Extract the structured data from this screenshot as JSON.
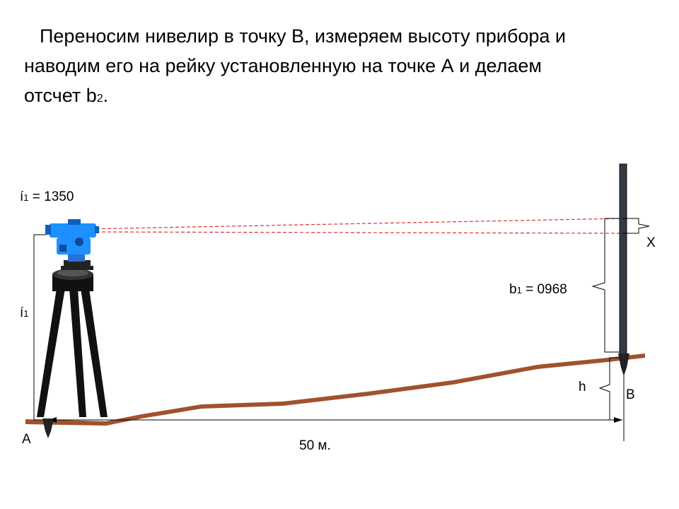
{
  "heading": {
    "line1": "Переносим нивелир в точку В, измеряем высоту прибора и",
    "line2": "наводим его на рейку установленную на точке А и делаем",
    "line3_main": "отсчет  b",
    "line3_sub": "2",
    "line3_end": "."
  },
  "labels": {
    "i1_value": {
      "main": "í",
      "sub": "1",
      "rest": " = 1350"
    },
    "i1": {
      "main": "í",
      "sub": "1"
    },
    "b1": {
      "main": "b",
      "sub": "1",
      "rest": " = 0968"
    },
    "x": "X",
    "h": "h",
    "point_a": "А",
    "point_b": "В",
    "distance": "50 м."
  },
  "colors": {
    "ground": "#a0522d",
    "sight_line": "#e03030",
    "instrument": "#1e90ff",
    "rod": "#333a44",
    "tripod": "#111111"
  }
}
